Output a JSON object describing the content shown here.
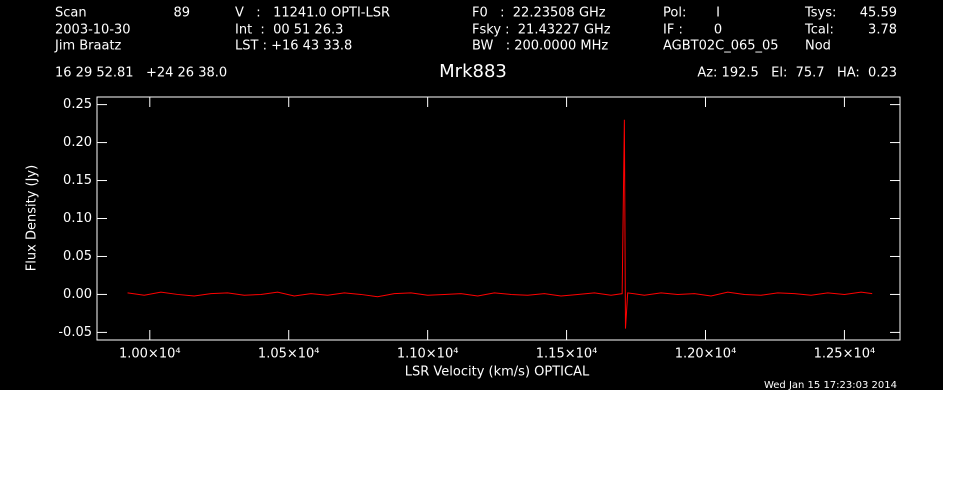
{
  "header": [
    "Scan",
    "89",
    "V   :   11241.0 OPTI-LSR",
    "F0   :  22.23508 GHz",
    "Pol:",
    "I",
    "Tsys:",
    "45.59",
    "2003-10-30",
    "Int  :  00 51 26.3",
    "Fsky :  21.43227 GHz",
    "IF :",
    "0",
    "Tcal:",
    "3.78",
    "Jim Braatz",
    "LST : +16 43 33.8",
    "BW   : 200.0000 MHz",
    "AGBT02C_065_05",
    "Nod",
    "16 29 52.81   +24 26 38.0",
    "Az: 192.5   El:  75.7   HA:  0.23"
  ],
  "timestamp": "Wed Jan 15 17:23:03 2014",
  "chart_data": {
    "type": "line",
    "title": "Mrk883",
    "x_label": "LSR Velocity (km/s) OPTICAL",
    "y_label": "Flux Density (Jy)",
    "color": "#ff0000",
    "x": [
      9920,
      9980,
      10040,
      10100,
      10160,
      10220,
      10280,
      10340,
      10400,
      10460,
      10520,
      10580,
      10640,
      10700,
      10760,
      10820,
      10880,
      10940,
      11000,
      11060,
      11120,
      11180,
      11240,
      11300,
      11360,
      11420,
      11480,
      11540,
      11600,
      11660,
      11700,
      11708,
      11712,
      11720,
      11780,
      11840,
      11900,
      11960,
      12020,
      12080,
      12140,
      12200,
      12260,
      12320,
      12380,
      12440,
      12500,
      12560,
      12600
    ],
    "values": [
      0.002,
      -0.001,
      0.003,
      0,
      -0.002,
      0.001,
      0.002,
      -0.001,
      0,
      0.003,
      -0.002,
      0.001,
      -0.001,
      0.002,
      0,
      -0.003,
      0.001,
      0.002,
      -0.001,
      0,
      0.001,
      -0.002,
      0.002,
      0,
      -0.001,
      0.001,
      -0.002,
      0,
      0.002,
      -0.001,
      0.001,
      0.23,
      -0.045,
      0.002,
      -0.001,
      0.002,
      0,
      0.001,
      -0.002,
      0.003,
      0,
      -0.001,
      0.002,
      0.001,
      -0.001,
      0.002,
      0,
      0.003,
      0.001
    ],
    "xlim": [
      9810,
      12700
    ],
    "xticks": [
      {
        "value": 10000,
        "label": "1.00×10⁴"
      },
      {
        "value": 10500,
        "label": "1.05×10⁴"
      },
      {
        "value": 11000,
        "label": "1.10×10⁴"
      },
      {
        "value": 11500,
        "label": "1.15×10⁴"
      },
      {
        "value": 12000,
        "label": "1.20×10⁴"
      },
      {
        "value": 12500,
        "label": "1.25×10⁴"
      }
    ],
    "ylim": [
      -0.06,
      0.26
    ],
    "yticks": [
      -0.05,
      {
        "value": 0,
        "label": "0.00"
      },
      0.05,
      {
        "value": 0.1,
        "label": "0.10"
      },
      0.15,
      {
        "value": 0.2,
        "label": "0.20"
      },
      0.25
    ]
  }
}
